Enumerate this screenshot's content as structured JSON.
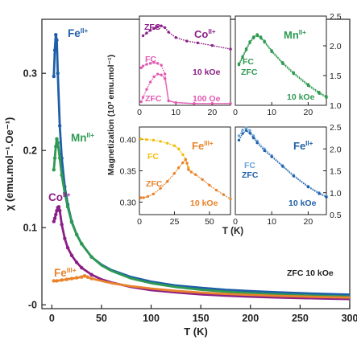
{
  "chart_data": [
    {
      "id": "main",
      "type": "scatter",
      "xlabel": "T (K)",
      "ylabel": "χ (emu.mol⁻¹.Oe⁻¹)",
      "xlim": [
        -10,
        300
      ],
      "ylim": [
        -0.005,
        0.37
      ],
      "xticks": [
        0,
        50,
        100,
        150,
        200,
        250,
        300
      ],
      "yticks": [
        0,
        0.1,
        0.2,
        0.3
      ],
      "ytick_labels": [
        "-0",
        "0.1",
        "0.2",
        "0.3"
      ],
      "annotation": "ZFC 10 kOe",
      "series": [
        {
          "name": "Fe",
          "ion": "II+",
          "color": "#1f5fa8",
          "points": [
            [
              2,
              0.296
            ],
            [
              3,
              0.33
            ],
            [
              4,
              0.35
            ],
            [
              5,
              0.343
            ],
            [
              6,
              0.3
            ],
            [
              8,
              0.232
            ],
            [
              10,
              0.19
            ],
            [
              13,
              0.153
            ],
            [
              16,
              0.13
            ],
            [
              20,
              0.108
            ],
            [
              25,
              0.091
            ],
            [
              30,
              0.079
            ],
            [
              40,
              0.062
            ],
            [
              50,
              0.052
            ],
            [
              60,
              0.045
            ],
            [
              80,
              0.036
            ],
            [
              100,
              0.03
            ],
            [
              125,
              0.025
            ],
            [
              150,
              0.022
            ],
            [
              175,
              0.0195
            ],
            [
              200,
              0.0178
            ],
            [
              225,
              0.0163
            ],
            [
              250,
              0.0151
            ],
            [
              275,
              0.0141
            ],
            [
              300,
              0.0132
            ]
          ]
        },
        {
          "name": "Mn",
          "ion": "II+",
          "color": "#2e9a52",
          "points": [
            [
              2,
              0.175
            ],
            [
              3,
              0.19
            ],
            [
              4,
              0.205
            ],
            [
              5,
              0.215
            ],
            [
              6,
              0.21
            ],
            [
              8,
              0.19
            ],
            [
              10,
              0.168
            ],
            [
              13,
              0.145
            ],
            [
              16,
              0.127
            ],
            [
              20,
              0.107
            ],
            [
              25,
              0.091
            ],
            [
              30,
              0.079
            ],
            [
              40,
              0.062
            ],
            [
              50,
              0.051
            ],
            [
              60,
              0.044
            ],
            [
              80,
              0.034
            ],
            [
              100,
              0.028
            ],
            [
              125,
              0.023
            ],
            [
              150,
              0.0195
            ],
            [
              175,
              0.017
            ],
            [
              200,
              0.015
            ],
            [
              225,
              0.0136
            ],
            [
              250,
              0.0124
            ],
            [
              275,
              0.0114
            ],
            [
              300,
              0.0106
            ]
          ]
        },
        {
          "name": "Co",
          "ion": "II+",
          "color": "#8b1f86",
          "points": [
            [
              2,
              0.108
            ],
            [
              3,
              0.112
            ],
            [
              4,
              0.117
            ],
            [
              5,
              0.122
            ],
            [
              6,
              0.126
            ],
            [
              7,
              0.127
            ],
            [
              8,
              0.122
            ],
            [
              10,
              0.104
            ],
            [
              13,
              0.086
            ],
            [
              16,
              0.074
            ],
            [
              20,
              0.064
            ],
            [
              25,
              0.055
            ],
            [
              30,
              0.048
            ],
            [
              40,
              0.039
            ],
            [
              50,
              0.033
            ],
            [
              60,
              0.029
            ],
            [
              80,
              0.023
            ],
            [
              100,
              0.019
            ],
            [
              125,
              0.016
            ],
            [
              150,
              0.0135
            ],
            [
              175,
              0.0118
            ],
            [
              200,
              0.0105
            ],
            [
              225,
              0.0095
            ],
            [
              250,
              0.0087
            ],
            [
              275,
              0.008
            ],
            [
              300,
              0.0074
            ]
          ]
        },
        {
          "name": "Fe",
          "ion": "III+",
          "color": "#e8832c",
          "points": [
            [
              2,
              0.031
            ],
            [
              5,
              0.031
            ],
            [
              10,
              0.032
            ],
            [
              15,
              0.033
            ],
            [
              20,
              0.034
            ],
            [
              25,
              0.035
            ],
            [
              30,
              0.036
            ],
            [
              33,
              0.0375
            ],
            [
              36,
              0.036
            ],
            [
              40,
              0.034
            ],
            [
              50,
              0.031
            ],
            [
              60,
              0.028
            ],
            [
              80,
              0.024
            ],
            [
              100,
              0.021
            ],
            [
              125,
              0.018
            ],
            [
              150,
              0.0158
            ],
            [
              175,
              0.0141
            ],
            [
              200,
              0.0128
            ],
            [
              225,
              0.0117
            ],
            [
              250,
              0.0108
            ],
            [
              275,
              0.01
            ],
            [
              300,
              0.0094
            ]
          ]
        }
      ]
    },
    {
      "id": "inset-co",
      "type": "scatter",
      "label": "Co",
      "label_ion": "II+",
      "xlim": [
        0,
        25
      ],
      "ylim": [
        0,
        1
      ],
      "xticks": [
        0,
        10,
        20
      ],
      "notes": [
        "10 kOe",
        "100 Oe"
      ],
      "series": [
        {
          "name": "ZFC",
          "field": "10 kOe",
          "color": "#8b1f86",
          "points": [
            [
              1,
              0.78
            ],
            [
              2,
              0.81
            ],
            [
              3,
              0.84
            ],
            [
              4,
              0.86
            ],
            [
              5,
              0.88
            ],
            [
              6,
              0.89
            ],
            [
              7,
              0.87
            ],
            [
              8,
              0.82
            ],
            [
              10,
              0.76
            ],
            [
              13,
              0.72
            ],
            [
              16,
              0.7
            ],
            [
              20,
              0.67
            ],
            [
              25,
              0.63
            ]
          ]
        },
        {
          "name": "FC",
          "field": "100 Oe",
          "color": "#e25bb4",
          "points": [
            [
              0.5,
              0.42
            ],
            [
              1,
              0.44
            ],
            [
              2,
              0.46
            ],
            [
              3,
              0.47
            ],
            [
              4,
              0.48
            ],
            [
              5,
              0.47
            ],
            [
              6,
              0.45
            ],
            [
              7,
              0.35
            ],
            [
              8,
              0.05
            ],
            [
              10,
              0.03
            ],
            [
              15,
              0.02
            ],
            [
              20,
              0.02
            ],
            [
              25,
              0.02
            ]
          ]
        },
        {
          "name": "ZFC",
          "field": "100 Oe",
          "color": "#e25bb4",
          "points": [
            [
              0.5,
              0.04
            ],
            [
              1,
              0.09
            ],
            [
              2,
              0.18
            ],
            [
              3,
              0.26
            ],
            [
              4,
              0.32
            ],
            [
              5,
              0.35
            ],
            [
              6,
              0.34
            ],
            [
              7,
              0.3
            ],
            [
              8,
              0.05
            ],
            [
              10,
              0.03
            ],
            [
              15,
              0.02
            ],
            [
              20,
              0.02
            ],
            [
              25,
              0.02
            ]
          ]
        }
      ]
    },
    {
      "id": "inset-mn",
      "type": "scatter",
      "label": "Mn",
      "label_ion": "II+",
      "xlim": [
        0,
        25
      ],
      "ylim": [
        1.0,
        2.5
      ],
      "xticks": [
        0,
        10,
        20
      ],
      "yticks": [
        1.0,
        1.5,
        2.0,
        2.5
      ],
      "ytick_labels": [
        "1.0",
        "1.5",
        "2.0",
        "2.5"
      ],
      "notes": [
        "10 kOe"
      ],
      "series": [
        {
          "name": "FC",
          "color": "#2e9a52",
          "points": [
            [
              1,
              1.7
            ],
            [
              2,
              1.82
            ],
            [
              3,
              1.95
            ],
            [
              4,
              2.07
            ],
            [
              5,
              2.15
            ],
            [
              6,
              2.19
            ],
            [
              7,
              2.15
            ],
            [
              8,
              2.08
            ],
            [
              10,
              1.92
            ],
            [
              13,
              1.72
            ],
            [
              16,
              1.55
            ],
            [
              20,
              1.35
            ],
            [
              23,
              1.22
            ],
            [
              25,
              1.15
            ]
          ]
        },
        {
          "name": "ZFC",
          "color": "#2e9a52",
          "points": [
            [
              1,
              1.68
            ],
            [
              2,
              1.8
            ],
            [
              3,
              1.93
            ],
            [
              4,
              2.05
            ],
            [
              5,
              2.13
            ],
            [
              6,
              2.17
            ],
            [
              7,
              2.13
            ],
            [
              8,
              2.06
            ],
            [
              10,
              1.9
            ],
            [
              13,
              1.7
            ],
            [
              16,
              1.53
            ],
            [
              20,
              1.33
            ],
            [
              23,
              1.2
            ],
            [
              25,
              1.13
            ]
          ]
        }
      ]
    },
    {
      "id": "inset-fe3",
      "type": "scatter",
      "label": "Fe",
      "label_ion": "III+",
      "xlim": [
        0,
        65
      ],
      "ylim": [
        0.28,
        0.42
      ],
      "xticks": [
        0,
        25,
        50
      ],
      "yticks": [
        0.3,
        0.35,
        0.4
      ],
      "ytick_labels": [
        "0.30",
        "0.35",
        "0.40"
      ],
      "notes": [
        "10 kOe"
      ],
      "series": [
        {
          "name": "FC",
          "color": "#f2bf0c",
          "points": [
            [
              1,
              0.401
            ],
            [
              5,
              0.4
            ],
            [
              10,
              0.399
            ],
            [
              15,
              0.397
            ],
            [
              20,
              0.394
            ],
            [
              25,
              0.39
            ],
            [
              28,
              0.385
            ],
            [
              31,
              0.376
            ],
            [
              33,
              0.368
            ],
            [
              35,
              0.355
            ]
          ]
        },
        {
          "name": "ZFC",
          "color": "#e8832c",
          "points": [
            [
              1,
              0.307
            ],
            [
              3,
              0.307
            ],
            [
              6,
              0.309
            ],
            [
              10,
              0.313
            ],
            [
              15,
              0.322
            ],
            [
              20,
              0.333
            ],
            [
              25,
              0.346
            ],
            [
              28,
              0.355
            ],
            [
              31,
              0.363
            ],
            [
              33,
              0.368
            ],
            [
              34,
              0.362
            ],
            [
              35,
              0.352
            ],
            [
              37,
              0.348
            ],
            [
              40,
              0.344
            ],
            [
              45,
              0.336
            ],
            [
              50,
              0.327
            ],
            [
              55,
              0.319
            ],
            [
              60,
              0.312
            ],
            [
              65,
              0.305
            ]
          ]
        }
      ]
    },
    {
      "id": "inset-fe2",
      "type": "scatter",
      "label": "Fe",
      "label_ion": "II+",
      "xlim": [
        0,
        25
      ],
      "ylim": [
        0.5,
        2.5
      ],
      "xticks": [
        0,
        10,
        20
      ],
      "yticks": [
        0.5,
        1.0,
        1.5,
        2.0,
        2.5
      ],
      "ytick_labels": [
        "0.5",
        "1.0",
        "1.5",
        "2.0",
        "2.5"
      ],
      "notes": [
        "10 kOe"
      ],
      "series": [
        {
          "name": "FC",
          "color": "#6aa3d8",
          "points": [
            [
              1,
              2.3
            ],
            [
              2,
              2.43
            ],
            [
              3,
              2.48
            ],
            [
              4,
              2.42
            ],
            [
              5,
              2.3
            ],
            [
              6,
              2.18
            ],
            [
              8,
              2.0
            ],
            [
              10,
              1.85
            ],
            [
              13,
              1.62
            ],
            [
              16,
              1.4
            ],
            [
              20,
              1.15
            ],
            [
              23,
              1.0
            ],
            [
              25,
              0.92
            ]
          ]
        },
        {
          "name": "ZFC",
          "color": "#1f5fa8",
          "points": [
            [
              1,
              2.2
            ],
            [
              2,
              2.35
            ],
            [
              3,
              2.42
            ],
            [
              4,
              2.36
            ],
            [
              5,
              2.25
            ],
            [
              6,
              2.14
            ],
            [
              8,
              1.96
            ],
            [
              10,
              1.82
            ],
            [
              13,
              1.6
            ],
            [
              16,
              1.38
            ],
            [
              20,
              1.13
            ],
            [
              23,
              0.98
            ],
            [
              25,
              0.9
            ]
          ]
        }
      ]
    }
  ],
  "insets_ylabel": "Magnetization (10³ emu.mol⁻¹)",
  "insets_xlabel": "T (K)"
}
